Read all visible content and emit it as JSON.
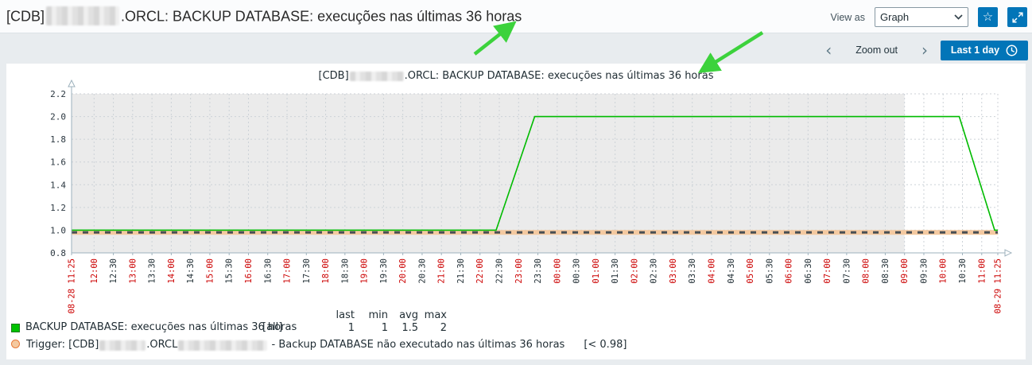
{
  "header": {
    "title_prefix": "[CDB]",
    "title_suffix": ".ORCL: BACKUP DATABASE: execuções nas últimas 36 horas",
    "view_as_label": "View as",
    "view_as_value": "Graph"
  },
  "toolbar": {
    "prev_icon": "‹",
    "next_icon": "›",
    "zoom_out_label": "Zoom out",
    "time_range_label": "Last 1 day",
    "accent_color": "#0275b8"
  },
  "chart_data": {
    "type": "line",
    "title_prefix": "[CDB]",
    "title_suffix": ".ORCL: BACKUP DATABASE: execuções nas últimas 36 horas",
    "ylim": [
      0.8,
      2.2
    ],
    "y_ticks": [
      0.8,
      1.0,
      1.2,
      1.4,
      1.6,
      1.8,
      2.0,
      2.2
    ],
    "x_total_minutes": 1440,
    "first_tick_minute": 35,
    "tick_step_minutes": 30,
    "x_start_label": "08-28 11:25",
    "x_end_label": "08-29 11:25",
    "x_ticks": [
      "12:00",
      "12:30",
      "13:00",
      "13:30",
      "14:00",
      "14:30",
      "15:00",
      "15:30",
      "16:00",
      "16:30",
      "17:00",
      "17:30",
      "18:00",
      "18:30",
      "19:00",
      "19:30",
      "20:00",
      "20:30",
      "21:00",
      "21:30",
      "22:00",
      "22:30",
      "23:00",
      "23:30",
      "00:00",
      "00:30",
      "01:00",
      "01:30",
      "02:00",
      "02:30",
      "03:00",
      "03:30",
      "04:00",
      "04:30",
      "05:00",
      "05:30",
      "06:00",
      "06:30",
      "07:00",
      "07:30",
      "08:00",
      "08:30",
      "09:00",
      "09:30",
      "10:00",
      "10:30",
      "11:00"
    ],
    "major_tick_color": "#cc0000",
    "minor_tick_color": "#1f2c33",
    "plot_bg": "#ebebeb",
    "grid_color": "#ccd2d7",
    "axis_color": "#9db1bc",
    "working_time": {
      "start_minute": 1295,
      "color": "#ffffff"
    },
    "series": [
      {
        "name": "BACKUP DATABASE: execuções nas últimas 36 horas",
        "color": "#00bb00",
        "points": [
          [
            0,
            1
          ],
          [
            660,
            1
          ],
          [
            720,
            2
          ],
          [
            1380,
            2
          ],
          [
            1435,
            1
          ],
          [
            1440,
            1
          ]
        ]
      }
    ],
    "trigger": {
      "value": 0.98,
      "band_color": "#f4c9a0",
      "dash_color": "#484f54"
    },
    "annotation_color": "#3cd23c"
  },
  "legend": {
    "columns": [
      "last",
      "min",
      "avg",
      "max"
    ],
    "series_row": {
      "swatch_color": "#00c200",
      "label": "BACKUP DATABASE: execuções nas últimas 36 horas",
      "scope": "[all]",
      "last": "1",
      "min": "1",
      "avg": "1.5",
      "max": "2"
    },
    "trigger_row": {
      "prefix": "Trigger: [CDB]",
      "mid": ".ORCL",
      "suffix": "- Backup DATABASE não executado nas últimas 36 horas",
      "threshold": "[< 0.98]",
      "swatch_fill": "#f4c9a0",
      "swatch_border": "#e87a3a"
    }
  }
}
